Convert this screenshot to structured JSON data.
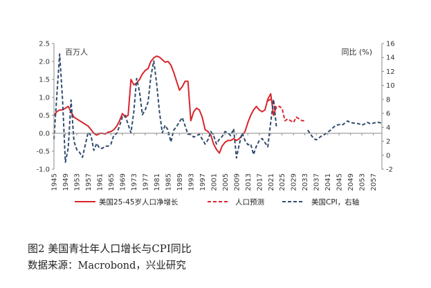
{
  "caption": {
    "title": "图2  美国青壮年人口增长与CPI同比",
    "source": "数据来源：Macrobond，兴业研究"
  },
  "chart_data": {
    "type": "line",
    "left_axis_unit": "百万人",
    "right_axis_unit": "同比 (%)",
    "xlim": [
      1945,
      2060
    ],
    "ylim_left": [
      -1.0,
      2.5
    ],
    "ylim_right": [
      -2,
      16
    ],
    "left_ticks": [
      "-1.0",
      "-0.5",
      "0.0",
      "0.5",
      "1.0",
      "1.5",
      "2.0",
      "2.5"
    ],
    "right_ticks": [
      "-2",
      "0",
      "2",
      "4",
      "6",
      "8",
      "10",
      "12",
      "14",
      "16"
    ],
    "x_ticks": [
      "1945",
      "1949",
      "1953",
      "1957",
      "1961",
      "1965",
      "1969",
      "1973",
      "1977",
      "1981",
      "1985",
      "1989",
      "1993",
      "1997",
      "2001",
      "2005",
      "2009",
      "2013",
      "2017",
      "2021",
      "2025",
      "2029",
      "2033",
      "2037",
      "2041",
      "2045",
      "2049",
      "2053",
      "2057"
    ],
    "legend": [
      "美国25-45岁人口净增长",
      "人口预测",
      "美国CPI，右轴"
    ],
    "series": [
      {
        "name": "美国25-45岁人口净增长",
        "axis": "left",
        "color": "#d9232a",
        "style": "solid",
        "x": [
          1945,
          1946,
          1947,
          1948,
          1949,
          1950,
          1951,
          1952,
          1953,
          1954,
          1955,
          1956,
          1957,
          1958,
          1959,
          1960,
          1961,
          1962,
          1963,
          1964,
          1965,
          1966,
          1967,
          1968,
          1969,
          1970,
          1971,
          1972,
          1973,
          1974,
          1975,
          1976,
          1977,
          1978,
          1979,
          1980,
          1981,
          1982,
          1983,
          1984,
          1985,
          1986,
          1987,
          1988,
          1989,
          1990,
          1991,
          1992,
          1993,
          1994,
          1995,
          1996,
          1997,
          1998,
          1999,
          2000,
          2001,
          2002,
          2003,
          2004,
          2005,
          2006,
          2007,
          2008,
          2009,
          2010,
          2011,
          2012,
          2013,
          2014,
          2015,
          2016,
          2017,
          2018,
          2019,
          2020,
          2021,
          2022,
          2023
        ],
        "values": [
          0.5,
          0.6,
          0.65,
          0.65,
          0.7,
          0.75,
          0.6,
          0.45,
          0.4,
          0.35,
          0.3,
          0.25,
          0.2,
          0.1,
          0.0,
          -0.05,
          0.0,
          0.0,
          -0.02,
          0.03,
          0.05,
          0.1,
          0.2,
          0.35,
          0.55,
          0.45,
          0.5,
          1.5,
          1.35,
          1.4,
          1.5,
          1.65,
          1.75,
          1.8,
          2.0,
          2.1,
          2.15,
          2.12,
          2.05,
          1.98,
          2.0,
          1.9,
          1.7,
          1.45,
          1.2,
          1.3,
          1.45,
          1.45,
          0.35,
          0.6,
          0.7,
          0.65,
          0.45,
          0.1,
          0.05,
          -0.05,
          -0.3,
          -0.45,
          -0.55,
          -0.35,
          -0.25,
          -0.2,
          -0.2,
          -0.15,
          -0.2,
          -0.15,
          -0.05,
          0.05,
          0.3,
          0.5,
          0.65,
          0.75,
          0.65,
          0.6,
          0.65,
          0.95,
          1.1,
          0.5,
          0.75
        ]
      },
      {
        "name": "人口预测",
        "axis": "left",
        "color": "#d9232a",
        "style": "dashed",
        "x": [
          2020,
          2021,
          2022,
          2023,
          2024,
          2025,
          2026,
          2027,
          2028,
          2029,
          2030,
          2031,
          2032,
          2033
        ],
        "values": [
          0.9,
          0.95,
          0.8,
          0.7,
          0.75,
          0.7,
          0.35,
          0.4,
          0.35,
          0.3,
          0.45,
          0.4,
          0.35,
          0.35
        ]
      },
      {
        "name": "美国CPI，右轴",
        "axis": "right",
        "color": "#2f4a6e",
        "style": "dashed",
        "x": [
          1945,
          1946,
          1947,
          1948,
          1949,
          1950,
          1951,
          1952,
          1953,
          1954,
          1955,
          1956,
          1957,
          1958,
          1959,
          1960,
          1961,
          1962,
          1963,
          1964,
          1965,
          1966,
          1967,
          1968,
          1969,
          1970,
          1971,
          1972,
          1973,
          1974,
          1975,
          1976,
          1977,
          1978,
          1979,
          1980,
          1981,
          1982,
          1983,
          1984,
          1985,
          1986,
          1987,
          1988,
          1989,
          1990,
          1991,
          1992,
          1993,
          1994,
          1995,
          1996,
          1997,
          1998,
          1999,
          2000,
          2001,
          2002,
          2003,
          2004,
          2005,
          2006,
          2007,
          2008,
          2009,
          2010,
          2011,
          2012,
          2013,
          2014,
          2015,
          2016,
          2017,
          2018,
          2019,
          2020,
          2021,
          2022,
          2023
        ],
        "values": [
          2.3,
          8.5,
          14.5,
          8.0,
          -1.0,
          1.0,
          7.9,
          2.0,
          0.8,
          0.4,
          -0.3,
          1.5,
          3.3,
          2.8,
          0.7,
          1.7,
          1.0,
          1.0,
          1.3,
          1.3,
          1.6,
          2.9,
          3.1,
          4.2,
          5.5,
          5.7,
          4.4,
          3.2,
          6.2,
          11.0,
          9.1,
          5.8,
          6.5,
          7.6,
          11.3,
          13.5,
          10.3,
          6.2,
          3.2,
          4.3,
          3.6,
          1.9,
          3.6,
          4.1,
          4.8,
          5.4,
          4.2,
          3.0,
          3.0,
          2.6,
          2.8,
          3.0,
          2.3,
          1.6,
          2.2,
          3.4,
          2.8,
          1.6,
          2.3,
          2.7,
          3.4,
          3.2,
          2.8,
          3.8,
          -0.4,
          1.6,
          3.2,
          2.1,
          1.5,
          1.6,
          0.1,
          1.3,
          2.1,
          2.4,
          1.8,
          1.2,
          4.7,
          8.0,
          4.1
        ]
      },
      {
        "name": "美国CPI，右轴 (预测)",
        "axis": "right",
        "color": "#2f4a6e",
        "style": "dashed",
        "x": [
          2024,
          2025,
          2026,
          2027,
          2028,
          2029,
          2030,
          2031,
          2032,
          2033,
          2034,
          2035,
          2036,
          2037,
          2038,
          2039,
          2040,
          2041,
          2042,
          2043,
          2044,
          2045,
          2046,
          2047,
          2048,
          2049,
          2050,
          2051,
          2052,
          2053,
          2054,
          2055,
          2056,
          2057,
          2058,
          2059,
          2060
        ],
        "values": [
          null,
          null,
          null,
          null,
          null,
          null,
          null,
          null,
          null,
          null,
          3.6,
          3.0,
          2.4,
          2.2,
          2.5,
          2.8,
          3.0,
          3.3,
          3.6,
          4.0,
          4.3,
          4.4,
          4.3,
          4.6,
          4.9,
          4.7,
          4.6,
          4.6,
          4.5,
          4.3,
          4.5,
          4.7,
          4.5,
          4.6,
          4.7,
          4.7,
          4.6
        ]
      }
    ]
  }
}
